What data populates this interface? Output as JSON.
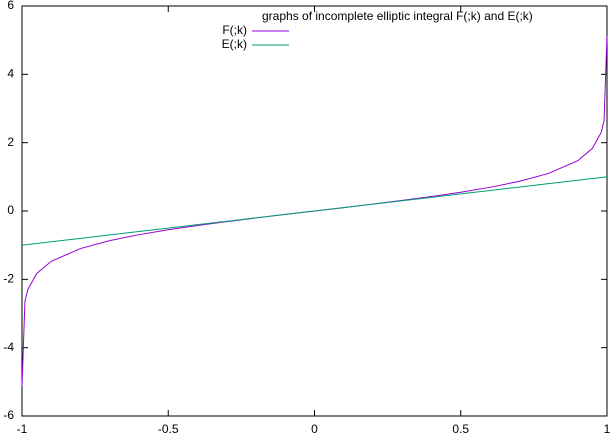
{
  "chart_data": {
    "type": "line",
    "title": "graphs of incomplete elliptic integral F(;k) and E(;k)",
    "x": [
      -0.99993,
      -0.99,
      -0.98,
      -0.95,
      -0.9,
      -0.8,
      -0.7,
      -0.6,
      -0.5,
      -0.4,
      -0.3,
      -0.2,
      -0.1,
      0,
      0.1,
      0.2,
      0.3,
      0.4,
      0.5,
      0.6,
      0.7,
      0.8,
      0.9,
      0.95,
      0.98,
      0.99,
      0.99993
    ],
    "series": [
      {
        "name": "F(;k)",
        "color": "#9400d3",
        "values": [
          -5.13,
          -2.647,
          -2.298,
          -1.832,
          -1.472,
          -1.099,
          -0.867,
          -0.693,
          -0.549,
          -0.424,
          -0.31,
          -0.203,
          -0.1,
          0,
          0.1,
          0.203,
          0.31,
          0.424,
          0.549,
          0.693,
          0.867,
          1.099,
          1.472,
          1.832,
          2.298,
          2.647,
          5.13
        ]
      },
      {
        "name": "E(;k)",
        "color": "#009e73",
        "values": [
          -0.99993,
          -0.99,
          -0.98,
          -0.95,
          -0.9,
          -0.8,
          -0.7,
          -0.6,
          -0.5,
          -0.4,
          -0.3,
          -0.2,
          -0.1,
          0,
          0.1,
          0.2,
          0.3,
          0.4,
          0.5,
          0.6,
          0.7,
          0.8,
          0.9,
          0.95,
          0.98,
          0.99,
          0.99993
        ]
      }
    ],
    "xlim": [
      -1,
      1
    ],
    "xticks": [
      -1,
      -0.5,
      0,
      0.5,
      1
    ],
    "ylim": [
      -6,
      6
    ],
    "yticks": [
      -6,
      -4,
      -2,
      0,
      2,
      4,
      6
    ],
    "grid": false
  }
}
